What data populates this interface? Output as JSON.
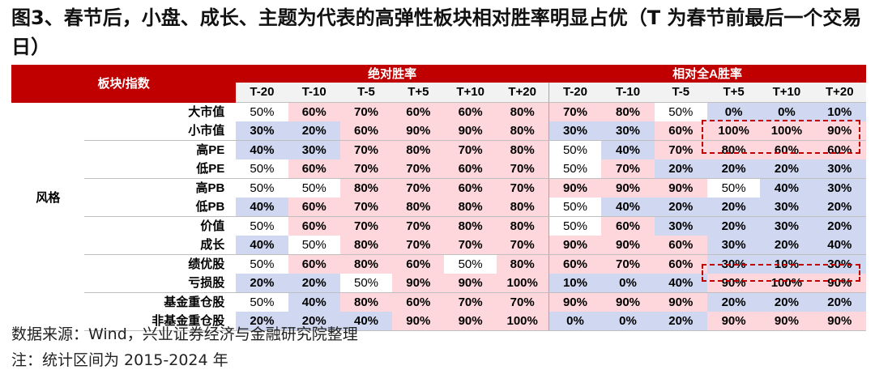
{
  "title": "图3、春节后，小盘、成长、主题为代表的高弹性板块相对胜率明显占优（T 为春节前最后一个交易日）",
  "header": {
    "sector_label": "板块/指数",
    "group1": "绝对胜率",
    "group2": "相对全A胜率",
    "periods": [
      "T-20",
      "T-10",
      "T-5",
      "T+5",
      "T+10",
      "T+20"
    ]
  },
  "category": "风格",
  "rows": [
    {
      "name": "大市值",
      "abs": [
        "50%",
        "60%",
        "70%",
        "60%",
        "60%",
        "80%"
      ],
      "rel": [
        "70%",
        "80%",
        "50%",
        "0%",
        "0%",
        "10%"
      ]
    },
    {
      "name": "小市值",
      "abs": [
        "30%",
        "20%",
        "60%",
        "90%",
        "90%",
        "80%"
      ],
      "rel": [
        "30%",
        "30%",
        "60%",
        "100%",
        "100%",
        "90%"
      ]
    },
    {
      "name": "高PE",
      "abs": [
        "40%",
        "30%",
        "70%",
        "80%",
        "70%",
        "80%"
      ],
      "rel": [
        "50%",
        "40%",
        "70%",
        "80%",
        "60%",
        "60%"
      ]
    },
    {
      "name": "低PE",
      "abs": [
        "50%",
        "60%",
        "70%",
        "70%",
        "60%",
        "70%"
      ],
      "rel": [
        "50%",
        "70%",
        "20%",
        "20%",
        "20%",
        "30%"
      ]
    },
    {
      "name": "高PB",
      "abs": [
        "50%",
        "50%",
        "80%",
        "70%",
        "60%",
        "70%"
      ],
      "rel": [
        "90%",
        "90%",
        "90%",
        "50%",
        "40%",
        "30%"
      ]
    },
    {
      "name": "低PB",
      "abs": [
        "40%",
        "60%",
        "70%",
        "80%",
        "80%",
        "80%"
      ],
      "rel": [
        "50%",
        "40%",
        "20%",
        "20%",
        "30%",
        "20%"
      ]
    },
    {
      "name": "价值",
      "abs": [
        "50%",
        "60%",
        "70%",
        "70%",
        "80%",
        "80%"
      ],
      "rel": [
        "50%",
        "60%",
        "30%",
        "20%",
        "30%",
        "20%"
      ]
    },
    {
      "name": "成长",
      "abs": [
        "40%",
        "50%",
        "80%",
        "70%",
        "70%",
        "70%"
      ],
      "rel": [
        "90%",
        "90%",
        "60%",
        "30%",
        "20%",
        "40%"
      ]
    },
    {
      "name": "绩优股",
      "abs": [
        "50%",
        "60%",
        "80%",
        "60%",
        "50%",
        "80%"
      ],
      "rel": [
        "60%",
        "70%",
        "60%",
        "30%",
        "10%",
        "30%"
      ]
    },
    {
      "name": "亏损股",
      "abs": [
        "20%",
        "20%",
        "50%",
        "90%",
        "90%",
        "100%"
      ],
      "rel": [
        "10%",
        "0%",
        "40%",
        "90%",
        "100%",
        "90%"
      ]
    },
    {
      "name": "基金重仓股",
      "abs": [
        "50%",
        "40%",
        "80%",
        "60%",
        "70%",
        "70%"
      ],
      "rel": [
        "90%",
        "90%",
        "90%",
        "20%",
        "20%",
        "20%"
      ]
    },
    {
      "name": "非基金重仓股",
      "abs": [
        "20%",
        "20%",
        "40%",
        "90%",
        "90%",
        "100%"
      ],
      "rel": [
        "0%",
        "0%",
        "20%",
        "90%",
        "90%",
        "90%"
      ]
    }
  ],
  "colors": {
    "accent_red": "#c00000",
    "high": "#fdd7dc",
    "mid": "#ffffff",
    "low": "#cfd8f0"
  },
  "footer": {
    "source": "数据来源：Wind，兴业证券经济与金融研究院整理",
    "note": "注：统计区间为 2015-2024 年"
  }
}
